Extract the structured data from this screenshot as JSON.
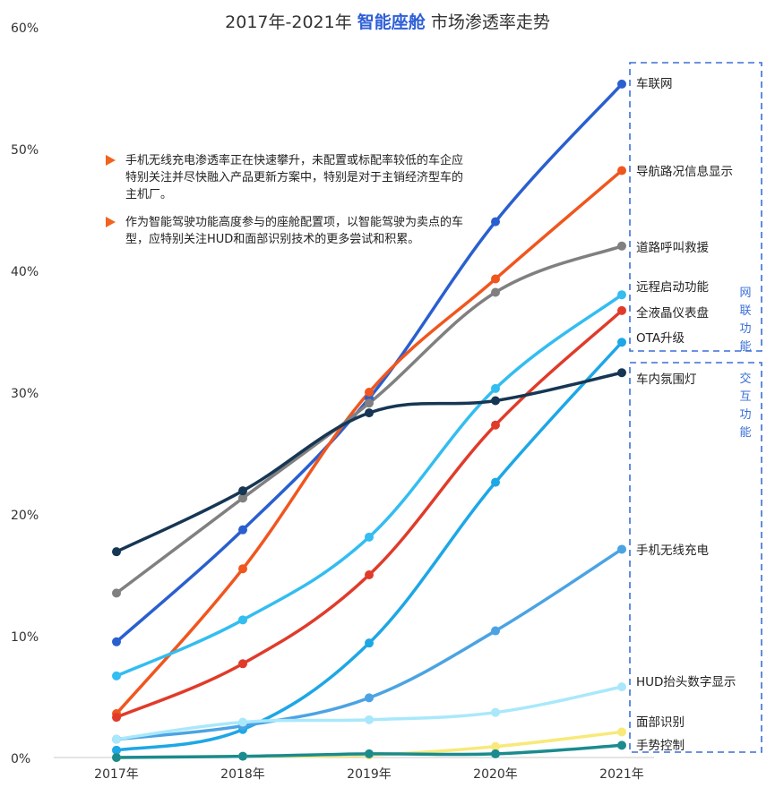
{
  "title": {
    "prefix": "2017年-2021年",
    "highlight": "智能座舱",
    "suffix": "市场渗透率走势"
  },
  "notes": [
    "手机无线充电渗透率正在快速攀升，未配置或标配率较低的车企应特别关注并尽快融入产品更新方案中，特别是对于主销经济型车的主机厂。",
    "作为智能驾驶功能高度参与的座舱配置项，以智能驾驶为卖点的车型，应特别关注HUD和面部识别技术的更多尝试和积累。"
  ],
  "groups": [
    {
      "label": "网联功能",
      "color": "#3a6fd8"
    },
    {
      "label": "交互功能",
      "color": "#3a6fd8"
    }
  ],
  "colors": {
    "accent": "#2f5fd6",
    "bullet": "#f0641e",
    "group_border": "#3a6fd8"
  },
  "chart_data": {
    "type": "line",
    "categories": [
      "2017年",
      "2018年",
      "2019年",
      "2020年",
      "2021年"
    ],
    "ylim": [
      0,
      60
    ],
    "y_ticks": [
      "0%",
      "10%",
      "20%",
      "30%",
      "40%",
      "50%",
      "60%"
    ],
    "y_tick_values": [
      0,
      10,
      20,
      30,
      40,
      50,
      60
    ],
    "grid": false,
    "series": [
      {
        "name": "车联网",
        "color": "#2a5fcf",
        "values": [
          9.5,
          18.7,
          29.5,
          44.0,
          55.3
        ]
      },
      {
        "name": "导航路况信息显示",
        "color": "#f0561e",
        "values": [
          3.6,
          15.5,
          30.0,
          39.3,
          48.2
        ]
      },
      {
        "name": "道路呼叫救援",
        "color": "#808080",
        "values": [
          13.5,
          21.3,
          29.1,
          38.2,
          42.0
        ]
      },
      {
        "name": "远程启动功能",
        "color": "#33bdf0",
        "values": [
          6.7,
          11.3,
          18.1,
          30.3,
          38.0
        ]
      },
      {
        "name": "全液晶仪表盘",
        "color": "#e03b2a",
        "values": [
          3.3,
          7.7,
          15.0,
          27.3,
          36.7
        ]
      },
      {
        "name": "OTA升级",
        "color": "#1da7e6",
        "values": [
          0.6,
          2.3,
          9.4,
          22.6,
          34.1
        ]
      },
      {
        "name": "车内氛围灯",
        "color": "#163654",
        "values": [
          16.9,
          21.9,
          28.3,
          29.3,
          31.6
        ]
      },
      {
        "name": "手机无线充电",
        "color": "#4ba3e3",
        "values": [
          1.5,
          2.6,
          4.9,
          10.4,
          17.1
        ]
      },
      {
        "name": "HUD抬头数字显示",
        "color": "#a9e8fb",
        "values": [
          1.5,
          2.9,
          3.1,
          3.7,
          5.8
        ]
      },
      {
        "name": "面部识别",
        "color": "#f8e97a",
        "values": [
          0.0,
          0.1,
          0.2,
          0.9,
          2.1
        ]
      },
      {
        "name": "手势控制",
        "color": "#1a8b8e",
        "values": [
          0.0,
          0.1,
          0.3,
          0.3,
          1.0
        ]
      }
    ]
  }
}
